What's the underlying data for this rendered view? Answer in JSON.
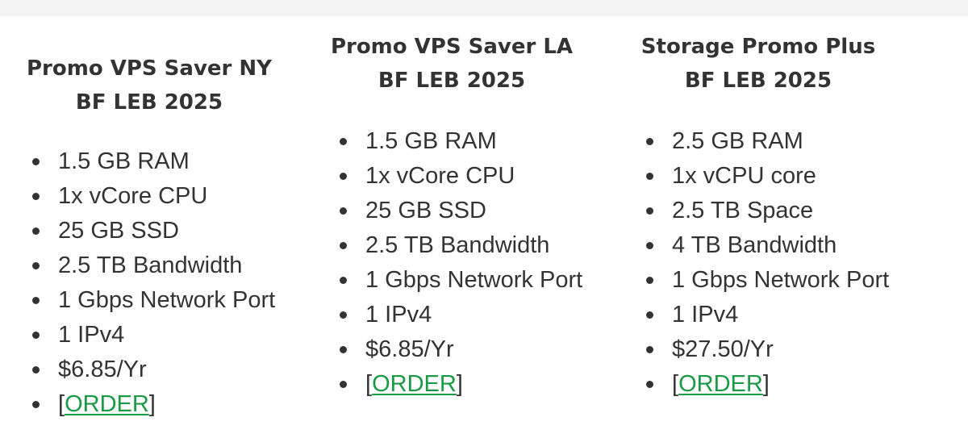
{
  "plans": [
    {
      "title_line1": "Promo VPS Saver NY",
      "title_line2": "BF LEB 2025",
      "features": [
        "1.5 GB RAM",
        "1x vCore CPU",
        "25 GB SSD",
        "2.5 TB Bandwidth",
        "1 Gbps Network Port",
        "1 IPv4",
        "$6.85/Yr"
      ],
      "order_open": "[",
      "order_label": "ORDER",
      "order_close": "]"
    },
    {
      "title_line1": "Promo VPS Saver LA",
      "title_line2": "BF LEB 2025",
      "features": [
        "1.5 GB RAM",
        "1x vCore CPU",
        "25 GB SSD",
        "2.5 TB Bandwidth",
        "1 Gbps Network Port",
        "1 IPv4",
        "$6.85/Yr"
      ],
      "order_open": "[",
      "order_label": "ORDER",
      "order_close": "]"
    },
    {
      "title_line1": "Storage Promo Plus",
      "title_line2": "BF LEB 2025",
      "features": [
        "2.5 GB RAM",
        "1x vCPU core",
        "2.5 TB Space",
        "4 TB Bandwidth",
        "1 Gbps Network Port",
        "1 IPv4",
        "$27.50/Yr"
      ],
      "order_open": "[",
      "order_label": "ORDER",
      "order_close": "]"
    }
  ],
  "colors": {
    "text": "#333333",
    "link": "#1a9a44",
    "top_band": "#f3f3f3"
  }
}
